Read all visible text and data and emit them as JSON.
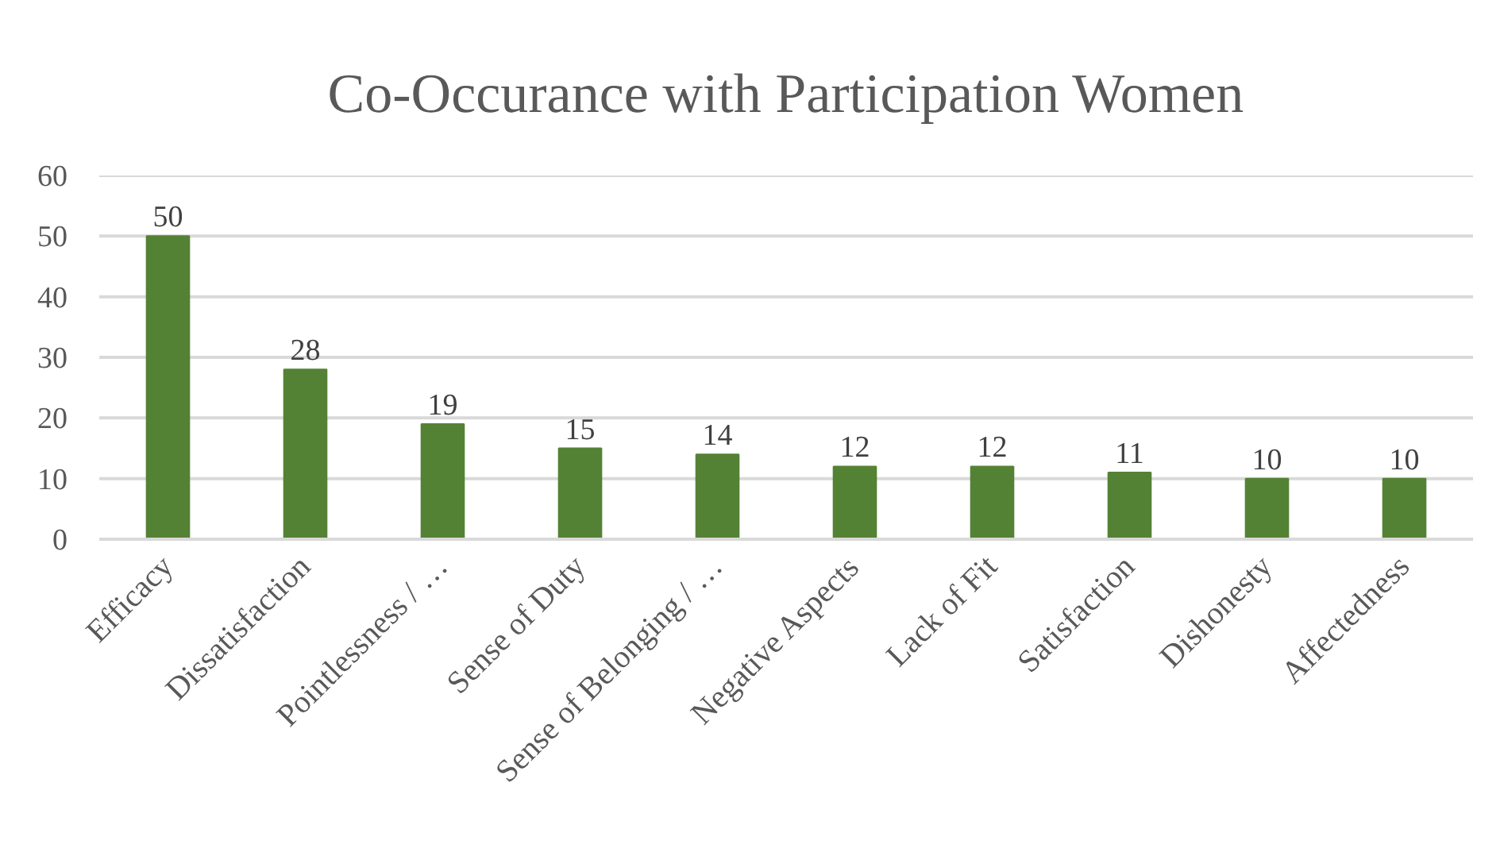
{
  "chart_data": {
    "type": "bar",
    "title": "Co-Occurance with Participation Women",
    "categories": [
      "Efficacy",
      "Dissatisfaction",
      "Pointlessness / …",
      "Sense of Duty",
      "Sense of Belonging / …",
      "Negative Aspects",
      "Lack of Fit",
      "Satisfaction",
      "Dishonesty",
      "Affectedness"
    ],
    "values": [
      50,
      28,
      19,
      15,
      14,
      12,
      12,
      11,
      10,
      10
    ],
    "color": "#548235",
    "ylim": [
      0,
      60
    ],
    "yticks": [
      0,
      10,
      20,
      30,
      40,
      50,
      60
    ],
    "grid": "y",
    "data_labels": true
  }
}
